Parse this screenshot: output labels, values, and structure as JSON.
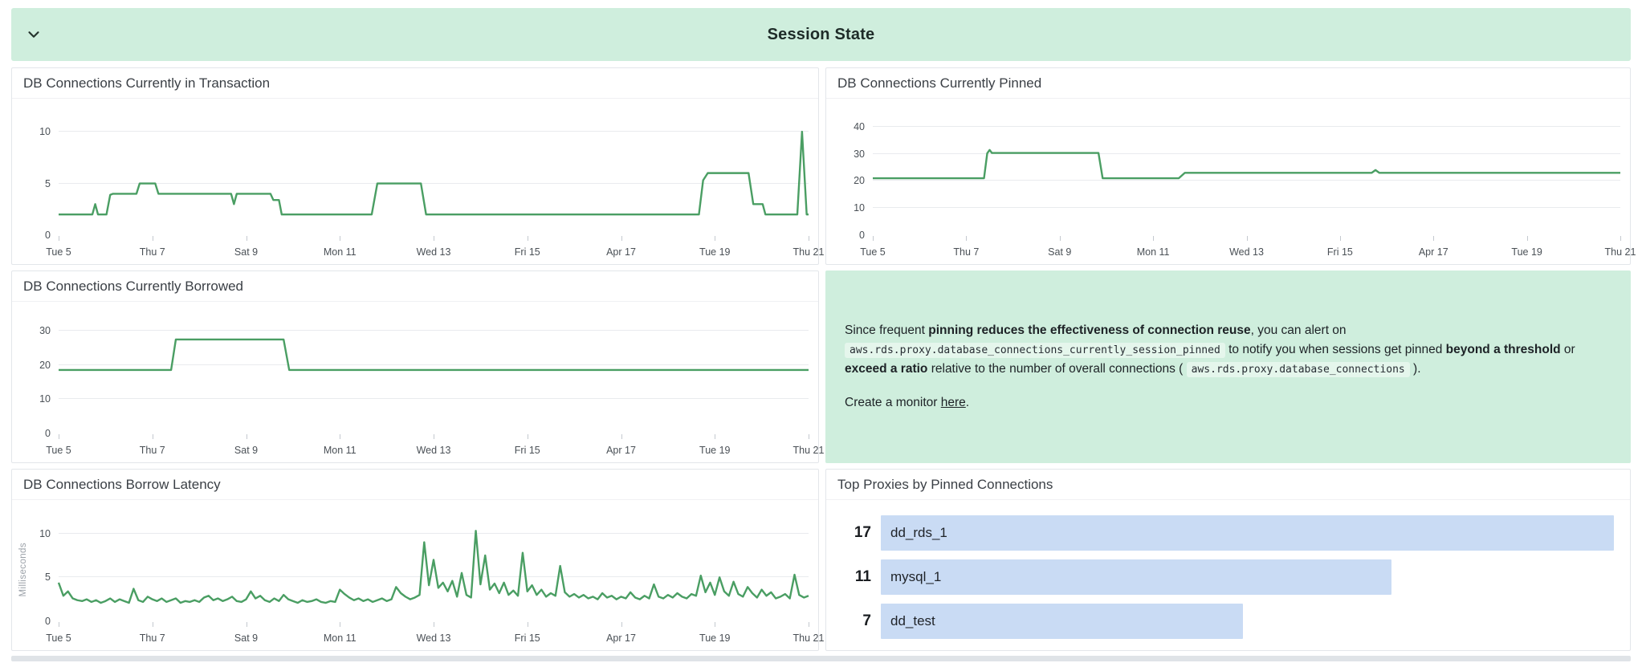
{
  "header": {
    "title": "Session State"
  },
  "colors": {
    "section_green": "#cfeedd",
    "note_green": "#cfeedd",
    "line_green": "#4a9e63",
    "bar_blue": "#c9dbf4"
  },
  "x_axis_labels": [
    "Tue 5",
    "Thu 7",
    "Sat 9",
    "Mon 11",
    "Wed 13",
    "Fri 15",
    "Apr 17",
    "Tue 19",
    "Thu 21"
  ],
  "chart_data": [
    {
      "type": "line",
      "title": "DB Connections Currently in Transaction",
      "ylabel": "",
      "yticks": [
        0,
        5,
        10
      ],
      "ylim": [
        0,
        11.4
      ],
      "x_days": 16,
      "points": [
        [
          0,
          2
        ],
        [
          0.72,
          2
        ],
        [
          0.78,
          3
        ],
        [
          0.84,
          2
        ],
        [
          1.02,
          2
        ],
        [
          1.1,
          3.9
        ],
        [
          1.16,
          4
        ],
        [
          1.66,
          4
        ],
        [
          1.73,
          5
        ],
        [
          2.06,
          5
        ],
        [
          2.13,
          4
        ],
        [
          3.68,
          4
        ],
        [
          3.74,
          3
        ],
        [
          3.8,
          4
        ],
        [
          4.52,
          4
        ],
        [
          4.58,
          3.4
        ],
        [
          4.7,
          3.4
        ],
        [
          4.76,
          2
        ],
        [
          6.68,
          2
        ],
        [
          6.8,
          5
        ],
        [
          7.73,
          5
        ],
        [
          7.84,
          2
        ],
        [
          13.66,
          2
        ],
        [
          13.75,
          5.3
        ],
        [
          13.85,
          6
        ],
        [
          14.72,
          6
        ],
        [
          14.82,
          3
        ],
        [
          15.02,
          3
        ],
        [
          15.08,
          2
        ],
        [
          15.76,
          2
        ],
        [
          15.86,
          10
        ],
        [
          15.96,
          2
        ],
        [
          16,
          2
        ]
      ]
    },
    {
      "type": "line",
      "title": "DB Connections Currently Pinned",
      "ylabel": "",
      "yticks": [
        0,
        10,
        20,
        30,
        40
      ],
      "ylim": [
        0,
        43.5
      ],
      "x_days": 16,
      "points": [
        [
          0,
          21
        ],
        [
          2.38,
          21
        ],
        [
          2.45,
          30.2
        ],
        [
          2.5,
          31.4
        ],
        [
          2.55,
          30.3
        ],
        [
          4.83,
          30.3
        ],
        [
          4.92,
          21
        ],
        [
          6.55,
          21
        ],
        [
          6.68,
          23
        ],
        [
          10.68,
          23
        ],
        [
          10.76,
          24
        ],
        [
          10.84,
          23
        ],
        [
          16,
          23
        ]
      ]
    },
    {
      "type": "line",
      "title": "DB Connections Currently Borrowed",
      "ylabel": "",
      "yticks": [
        0,
        10,
        20,
        30
      ],
      "ylim": [
        0,
        33
      ],
      "x_days": 16,
      "points": [
        [
          0,
          18.5
        ],
        [
          2.4,
          18.5
        ],
        [
          2.5,
          27.4
        ],
        [
          4.8,
          27.4
        ],
        [
          4.92,
          18.5
        ],
        [
          16,
          18.5
        ]
      ]
    },
    {
      "type": "line",
      "title": "DB Connections Borrow Latency",
      "ylabel": "Milliseconds",
      "yticks": [
        0,
        5,
        10
      ],
      "ylim": [
        0,
        11.7
      ],
      "x_days": 16,
      "x_step": 0.1,
      "values": [
        4.4,
        2.9,
        3.4,
        2.6,
        2.4,
        2.3,
        2.5,
        2.2,
        2.4,
        2.1,
        2.3,
        2.6,
        2.2,
        2.5,
        2.3,
        2.1,
        3.7,
        2.4,
        2.2,
        2.8,
        2.5,
        2.3,
        2.6,
        2.2,
        2.4,
        2.6,
        2.1,
        2.3,
        2.2,
        2.4,
        2.2,
        2.7,
        2.9,
        2.4,
        2.6,
        2.3,
        2.5,
        2.8,
        2.3,
        2.2,
        2.5,
        3.4,
        2.6,
        2.9,
        2.4,
        2.2,
        2.6,
        2.3,
        3.0,
        2.5,
        2.3,
        2.1,
        2.4,
        2.2,
        2.3,
        2.5,
        2.2,
        2.1,
        2.3,
        2.2,
        3.6,
        3.1,
        2.7,
        2.4,
        2.6,
        2.3,
        2.5,
        2.2,
        2.4,
        2.6,
        2.3,
        2.5,
        3.9,
        3.2,
        2.8,
        2.5,
        2.7,
        3.0,
        9.0,
        4.1,
        7.0,
        3.8,
        4.4,
        3.4,
        4.6,
        2.8,
        5.5,
        3.0,
        2.7,
        10.3,
        4.2,
        7.5,
        3.6,
        4.3,
        3.2,
        4.4,
        3.0,
        3.5,
        2.9,
        7.8,
        3.4,
        4.1,
        3.0,
        3.6,
        2.8,
        3.2,
        2.9,
        6.3,
        3.3,
        2.8,
        3.1,
        2.7,
        3.0,
        2.6,
        2.8,
        2.5,
        3.2,
        2.7,
        2.9,
        2.5,
        2.8,
        2.6,
        3.3,
        2.7,
        2.5,
        2.9,
        2.6,
        4.2,
        2.8,
        2.6,
        3.0,
        2.7,
        3.2,
        2.8,
        2.6,
        3.1,
        2.9,
        5.2,
        3.3,
        4.4,
        3.0,
        5.0,
        3.4,
        2.9,
        4.5,
        3.1,
        2.8,
        3.9,
        3.2,
        2.7,
        3.6,
        2.9,
        3.3,
        2.6,
        2.8,
        3.1,
        2.6,
        5.3,
        3.0,
        2.7,
        2.9
      ]
    },
    {
      "type": "bar",
      "title": "Top Proxies by Pinned Connections",
      "categories": [
        "dd_rds_1",
        "mysql_1",
        "dd_test"
      ],
      "values": [
        17,
        11,
        7
      ]
    }
  ],
  "note": {
    "paragraphs": [
      [
        {
          "k": "text",
          "t": "Since frequent "
        },
        {
          "k": "bold",
          "t": "pinning reduces the effectiveness of connection reuse"
        },
        {
          "k": "text",
          "t": ", you can alert on "
        },
        {
          "k": "code",
          "t": "aws.rds.proxy.database_connections_currently_session_pinned"
        },
        {
          "k": "text",
          "t": " to notify you when sessions get pinned "
        },
        {
          "k": "bold",
          "t": "beyond a threshold"
        },
        {
          "k": "text",
          "t": " or "
        },
        {
          "k": "bold",
          "t": "exceed a ratio"
        },
        {
          "k": "text",
          "t": " relative to the number of overall connections ( "
        },
        {
          "k": "code",
          "t": "aws.rds.proxy.database_connections"
        },
        {
          "k": "text",
          "t": " )."
        }
      ],
      [
        {
          "k": "text",
          "t": "Create a monitor "
        },
        {
          "k": "link",
          "t": "here"
        },
        {
          "k": "text",
          "t": "."
        }
      ]
    ]
  }
}
